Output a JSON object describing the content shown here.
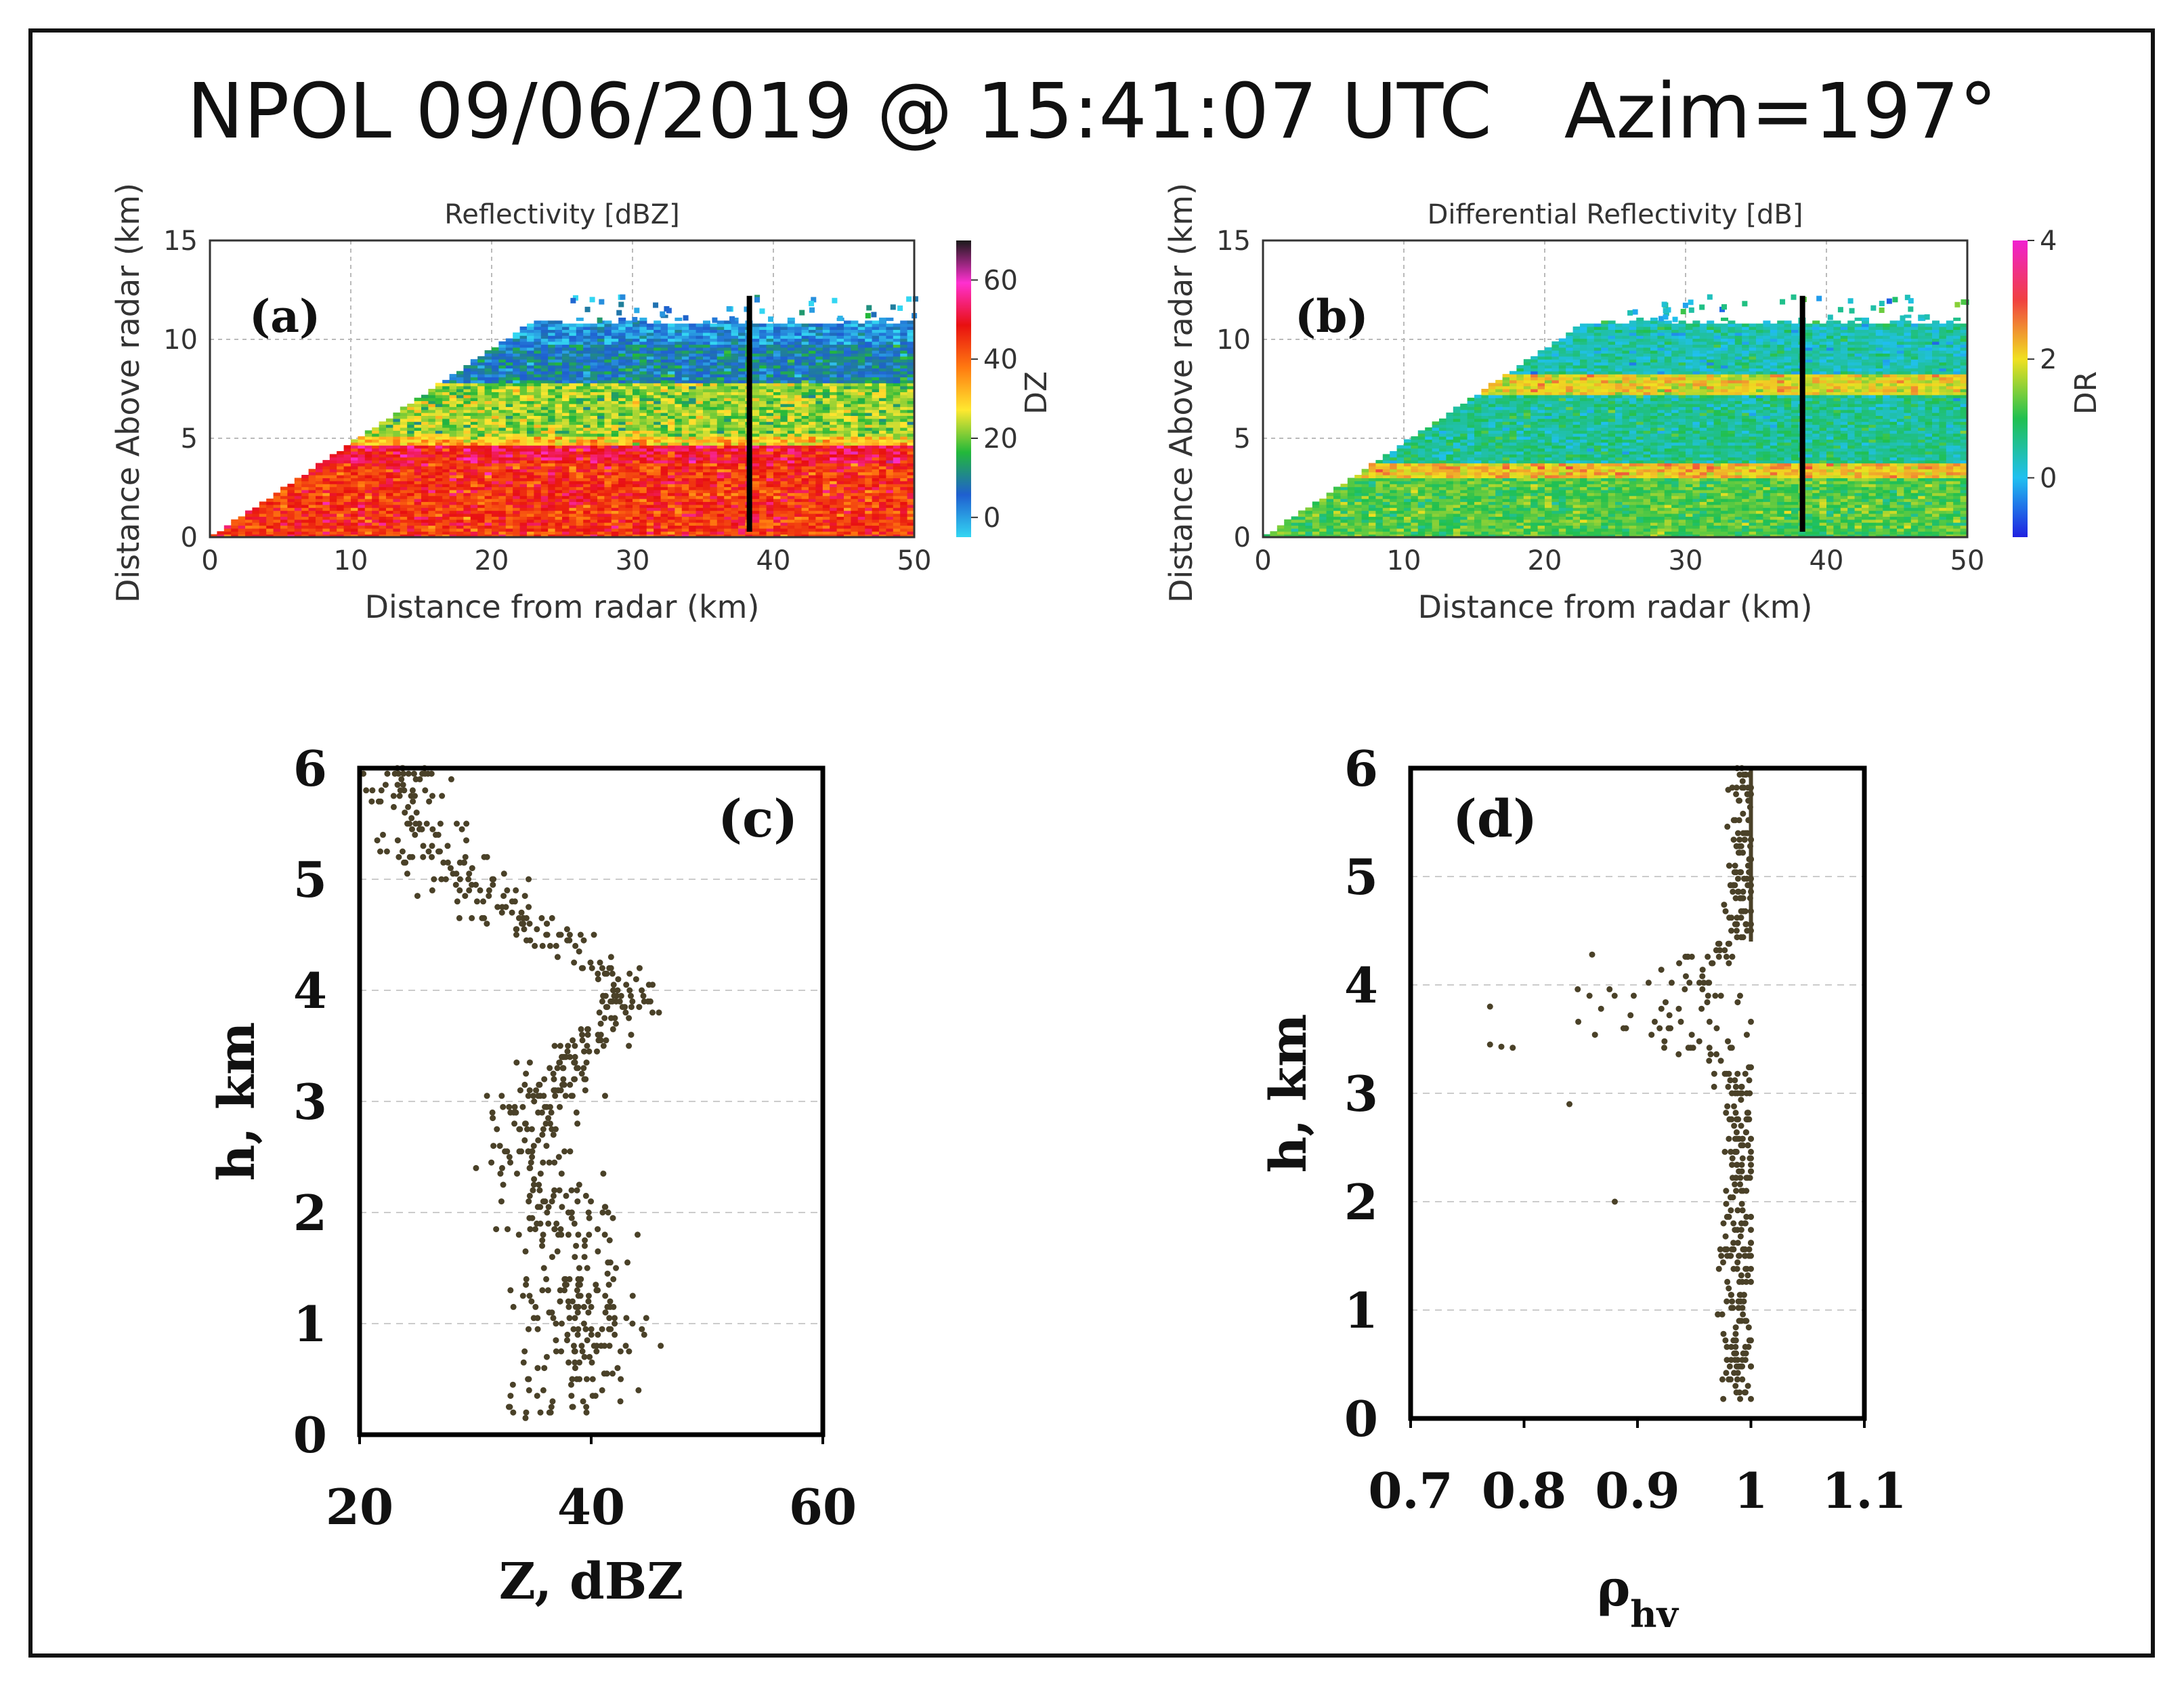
{
  "figure": {
    "title": "NPOL 09/06/2019 @ 15:41:07 UTC   Azim=197°"
  },
  "chart_data": [
    {
      "id": "a",
      "type": "heatmap",
      "panel_label": "(a)",
      "title": "Reflectivity [dBZ]",
      "xlabel": "Distance from radar (km)",
      "ylabel": "Distance Above radar  (km)",
      "xlim": [
        0,
        50
      ],
      "ylim": [
        0,
        15
      ],
      "xticks": [
        0,
        10,
        20,
        30,
        40,
        50
      ],
      "yticks": [
        0,
        5,
        10,
        15
      ],
      "grid": true,
      "vertical_line_x": 38.3,
      "colorbar": {
        "label": "DZ",
        "ticks": [
          0,
          20,
          40,
          60
        ],
        "range": [
          -5,
          70
        ],
        "colors": [
          "#33d6f2",
          "#1f5fd0",
          "#22b83a",
          "#ffe830",
          "#ff7a10",
          "#e81010",
          "#ff30d0",
          "#1a1a1a"
        ]
      },
      "layers": [
        {
          "from_km": 0,
          "to_km": 3.8,
          "value_dBZ": 45
        },
        {
          "from_km": 3.8,
          "to_km": 4.6,
          "value_dBZ": 50
        },
        {
          "from_km": 4.6,
          "to_km": 5.1,
          "value_dBZ": 30
        },
        {
          "from_km": 5.1,
          "to_km": 7.8,
          "value_dBZ": 22
        },
        {
          "from_km": 7.8,
          "to_km": 9.8,
          "value_dBZ": 8
        },
        {
          "from_km": 9.8,
          "to_km": 10.8,
          "value_dBZ": 2
        }
      ]
    },
    {
      "id": "b",
      "type": "heatmap",
      "panel_label": "(b)",
      "title": "Differential Reflectivity [dB]",
      "xlabel": "Distance from radar (km)",
      "ylabel": "Distance Above radar  (km)",
      "xlim": [
        0,
        50
      ],
      "ylim": [
        0,
        15
      ],
      "xticks": [
        0,
        10,
        20,
        30,
        40,
        50
      ],
      "yticks": [
        0,
        5,
        10,
        15
      ],
      "grid": true,
      "vertical_line_x": 38.3,
      "colorbar": {
        "label": "DR",
        "ticks": [
          0,
          2,
          4
        ],
        "range": [
          -1,
          4
        ],
        "colors": [
          "#2020e0",
          "#20c0f0",
          "#20c050",
          "#f0e020",
          "#f04040",
          "#f020d0"
        ]
      },
      "layers": [
        {
          "from_km": 0,
          "to_km": 3.0,
          "value_dB": 1.2
        },
        {
          "from_km": 3.0,
          "to_km": 3.8,
          "value_dB": 2.2
        },
        {
          "from_km": 3.8,
          "to_km": 7.2,
          "value_dB": 0.6
        },
        {
          "from_km": 7.2,
          "to_km": 8.2,
          "value_dB": 2.0
        },
        {
          "from_km": 8.2,
          "to_km": 10.8,
          "value_dB": 0.4
        }
      ]
    },
    {
      "id": "c",
      "type": "scatter",
      "panel_label": "(c)",
      "xlabel": "Z, dBZ",
      "ylabel": "h, km",
      "xlim": [
        20,
        60
      ],
      "ylim": [
        0,
        6
      ],
      "xticks": [
        20,
        40,
        60
      ],
      "yticks": [
        0,
        1,
        2,
        3,
        4,
        5,
        6
      ],
      "grid": "horizontal-dashed",
      "profile": [
        {
          "h": 0.15,
          "z": 36,
          "spread": 3.5
        },
        {
          "h": 0.6,
          "z": 39,
          "spread": 3.2
        },
        {
          "h": 1.0,
          "z": 39.5,
          "spread": 3.2
        },
        {
          "h": 1.5,
          "z": 38.5,
          "spread": 3.5
        },
        {
          "h": 2.0,
          "z": 37,
          "spread": 3.6
        },
        {
          "h": 2.5,
          "z": 35,
          "spread": 3.0
        },
        {
          "h": 3.0,
          "z": 35.5,
          "spread": 2.6
        },
        {
          "h": 3.4,
          "z": 38,
          "spread": 2.2
        },
        {
          "h": 3.8,
          "z": 43,
          "spread": 1.8
        },
        {
          "h": 4.1,
          "z": 43,
          "spread": 1.6
        },
        {
          "h": 4.4,
          "z": 38,
          "spread": 2.5
        },
        {
          "h": 4.8,
          "z": 31,
          "spread": 3.0
        },
        {
          "h": 5.2,
          "z": 27,
          "spread": 2.8
        },
        {
          "h": 5.6,
          "z": 25,
          "spread": 2.6
        },
        {
          "h": 6.0,
          "z": 24,
          "spread": 2.4
        }
      ]
    },
    {
      "id": "d",
      "type": "scatter",
      "panel_label": "(d)",
      "xlabel": "ρhv",
      "ylabel": "h, km",
      "xlim": [
        0.7,
        1.1
      ],
      "ylim": [
        0,
        6
      ],
      "xticks": [
        0.7,
        0.8,
        0.9,
        1,
        1.1
      ],
      "yticks": [
        0,
        1,
        2,
        3,
        4,
        5,
        6
      ],
      "grid": "horizontal-dashed",
      "profile": [
        {
          "h": 0.15,
          "rho": 0.99,
          "spread": 0.01
        },
        {
          "h": 3.0,
          "rho": 0.99,
          "spread": 0.01
        },
        {
          "h": 3.3,
          "rho": 0.975,
          "spread": 0.02
        },
        {
          "h": 3.6,
          "rho": 0.93,
          "spread": 0.05
        },
        {
          "h": 3.9,
          "rho": 0.92,
          "spread": 0.06
        },
        {
          "h": 4.2,
          "rho": 0.955,
          "spread": 0.03
        },
        {
          "h": 4.5,
          "rho": 0.99,
          "spread": 0.01
        },
        {
          "h": 6.0,
          "rho": 0.995,
          "spread": 0.005
        }
      ],
      "outliers": [
        {
          "h": 3.45,
          "rho": 0.77
        },
        {
          "h": 3.43,
          "rho": 0.78
        },
        {
          "h": 3.42,
          "rho": 0.79
        },
        {
          "h": 3.8,
          "rho": 0.77
        },
        {
          "h": 2.0,
          "rho": 0.88
        },
        {
          "h": 2.9,
          "rho": 0.84
        },
        {
          "h": 4.28,
          "rho": 0.86
        },
        {
          "h": 5.8,
          "rho": 0.98
        }
      ]
    }
  ]
}
